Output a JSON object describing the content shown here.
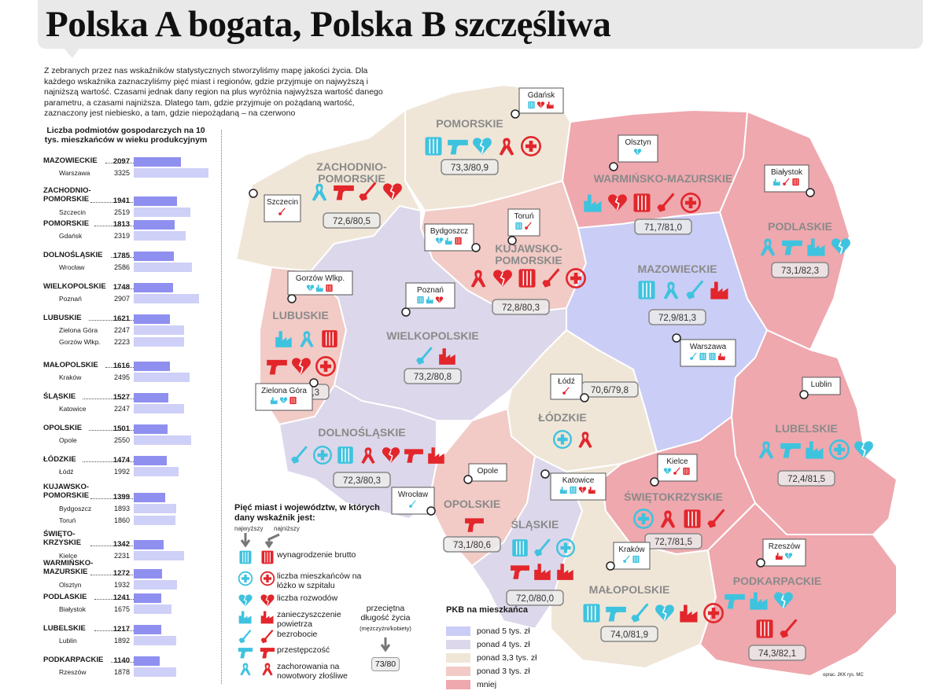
{
  "title": "Polska A bogata, Polska B szczęśliwa",
  "intro": "Z zebranych przez nas wskaźników statystycznych stworzyliśmy mapę jakości życia. Dla każdego wskaźnika zaznaczyliśmy pięć miast i regionów, gdzie przyjmuje on najwyższą i najniższą wartość. Czasami jednak dany region na plus wyróżnia najwyższa wartość danego parametru, a czasami najniższa. Dlatego tam, gdzie przyjmuje on pożądaną wartość, zaznaczony jest niebiesko, a tam, gdzie niepożądaną – na czerwono",
  "sidebar": {
    "header": "Liczba podmiotów gospodarczych na 10 tys. mieszkańców w wieku produkcyjnym",
    "rows": [
      {
        "region": "MAZOWIECKIE",
        "value": "2097",
        "cities": [
          {
            "name": "Warszawa",
            "value": "3325"
          }
        ]
      },
      {
        "region": "ZACHODNIO-POMORSKIE",
        "value": "1941",
        "cities": [
          {
            "name": "Szczecin",
            "value": "2519"
          }
        ]
      },
      {
        "region": "POMORSKIE",
        "value": "1813",
        "cities": [
          {
            "name": "Gdańsk",
            "value": "2319"
          }
        ]
      },
      {
        "region": "DOLNOŚLĄSKIE",
        "value": "1785",
        "cities": [
          {
            "name": "Wrocław",
            "value": "2586"
          }
        ]
      },
      {
        "region": "WIELKOPOLSKIE",
        "value": "1748",
        "cities": [
          {
            "name": "Poznań",
            "value": "2907"
          }
        ]
      },
      {
        "region": "LUBUSKIE",
        "value": "1621",
        "cities": [
          {
            "name": "Zielona Góra",
            "value": "2247"
          },
          {
            "name": "Gorzów Wlkp.",
            "value": "2223"
          }
        ]
      },
      {
        "region": "MAŁOPOLSKIE",
        "value": "1616",
        "cities": [
          {
            "name": "Kraków",
            "value": "2495"
          }
        ]
      },
      {
        "region": "ŚLĄSKIE",
        "value": "1527",
        "cities": [
          {
            "name": "Katowice",
            "value": "2247"
          }
        ]
      },
      {
        "region": "OPOLSKIE",
        "value": "1501",
        "cities": [
          {
            "name": "Opole",
            "value": "2550"
          }
        ]
      },
      {
        "region": "ŁÓDZKIE",
        "value": "1474",
        "cities": [
          {
            "name": "Łódź",
            "value": "1992"
          }
        ]
      },
      {
        "region": "KUJAWSKO-POMORSKIE",
        "value": "1399",
        "cities": [
          {
            "name": "Bydgoszcz",
            "value": "1893"
          },
          {
            "name": "Toruń",
            "value": "1860"
          }
        ]
      },
      {
        "region": "ŚWIĘTO-KRZYSKIE",
        "value": "1342",
        "cities": [
          {
            "name": "Kielce",
            "value": "2231"
          }
        ]
      },
      {
        "region": "WARMIŃSKO-MAZURSKIE",
        "value": "1272",
        "cities": [
          {
            "name": "Olsztyn",
            "value": "1932"
          }
        ]
      },
      {
        "region": "PODLASKIE",
        "value": "1241",
        "cities": [
          {
            "name": "Białystok",
            "value": "1675"
          }
        ]
      },
      {
        "region": "LUBELSKIE",
        "value": "1217",
        "cities": [
          {
            "name": "Lublin",
            "value": "1892"
          }
        ]
      },
      {
        "region": "PODKARPACKIE",
        "value": "1140",
        "cities": [
          {
            "name": "Rzeszów",
            "value": "1878"
          }
        ]
      }
    ]
  },
  "regions": [
    {
      "name": "POMORSKIE",
      "life": "73,3/80,9",
      "fill": "#f0e6d8"
    },
    {
      "name": "ZACHODNIO-POMORSKIE",
      "life": "72,6/80,5",
      "fill": "#f0e6d8"
    },
    {
      "name": "WARMIŃSKO-MAZURSKIE",
      "life": "71,7/81,0",
      "fill": "#eea8ae"
    },
    {
      "name": "PODLASKIE",
      "life": "73,1/82,3",
      "fill": "#eea8ae"
    },
    {
      "name": "KUJAWSKO-POMORSKIE",
      "life": "72,8/80,3",
      "fill": "#f2cbc6"
    },
    {
      "name": "MAZOWIECKIE",
      "life": "72,9/81,3",
      "fill": "#cacdf5"
    },
    {
      "name": "LUBUSKIE",
      "life": "72,3/80,3",
      "fill": "#f2cbc6"
    },
    {
      "name": "WIELKOPOLSKIE",
      "life": "73,2/80,8",
      "fill": "#dcd7ea"
    },
    {
      "name": "ŁÓDZKIE",
      "life": "70,6/79,8",
      "fill": "#f0e6d8"
    },
    {
      "name": "LUBELSKIE",
      "life": "72,4/81,5",
      "fill": "#eea8ae"
    },
    {
      "name": "DOLNOŚLĄSKIE",
      "life": "72,3/80,3",
      "fill": "#dcd7ea"
    },
    {
      "name": "OPOLSKIE",
      "life": "73,1/80,6",
      "fill": "#f2cbc6"
    },
    {
      "name": "ŚLĄSKIE",
      "life": "72,0/80,0",
      "fill": "#dcd7ea"
    },
    {
      "name": "ŚWIĘTOKRZYSKIE",
      "life": "72,7/81,5",
      "fill": "#eea8ae"
    },
    {
      "name": "MAŁOPOLSKIE",
      "life": "74,0/81,9",
      "fill": "#f0e6d8"
    },
    {
      "name": "PODKARPACKIE",
      "life": "74,3/82,1",
      "fill": "#eea8ae"
    }
  ],
  "cities": [
    "Gdańsk",
    "Szczecin",
    "Olsztyn",
    "Białystok",
    "Bydgoszcz",
    "Toruń",
    "Gorzów Wlkp.",
    "Poznań",
    "Warszawa",
    "Łódź",
    "Zielona Góra",
    "Lublin",
    "Opole",
    "Katowice",
    "Wrocław",
    "Kielce",
    "Kraków",
    "Rzeszów"
  ],
  "legend": {
    "title": "Pięć miast i województw, w których dany wskaźnik jest:",
    "highest": "najwyższy",
    "lowest": "najniższy",
    "items": [
      {
        "icon": "salary-icon",
        "label": "wynagrodzenie brutto"
      },
      {
        "icon": "hospital-bed-icon",
        "label": "liczba mieszkańców na łóżko w szpitalu"
      },
      {
        "icon": "broken-heart-icon",
        "label": "liczba rozwodów"
      },
      {
        "icon": "factory-icon",
        "label": "zanieczyszczenie powietrza"
      },
      {
        "icon": "shovel-icon",
        "label": "bezrobocie"
      },
      {
        "icon": "gun-icon",
        "label": "przestępczość"
      },
      {
        "icon": "ribbon-icon",
        "label": "zachorowania na nowotwory złośliwe"
      }
    ],
    "life_title": "przeciętna długość życia",
    "life_sub": "(mężczyźni/kobiety)",
    "life_example": "73/80"
  },
  "pkb": {
    "title": "PKB na mieszkańca",
    "items": [
      {
        "label": "ponad 5 tys. zł",
        "color": "#cacdf5"
      },
      {
        "label": "ponad 4 tys. zł",
        "color": "#dcd7ea"
      },
      {
        "label": "ponad 3,3 tys. zł",
        "color": "#f0e6d8"
      },
      {
        "label": "ponad 3 tys. zł",
        "color": "#f2cbc6"
      },
      {
        "label": "mniej",
        "color": "#eea8ae"
      }
    ]
  },
  "colors": {
    "blue": "#3ec3df",
    "red": "#e2262b",
    "region_label": "#8a8a8a"
  },
  "credit": "oprac. JKK rys. MC"
}
